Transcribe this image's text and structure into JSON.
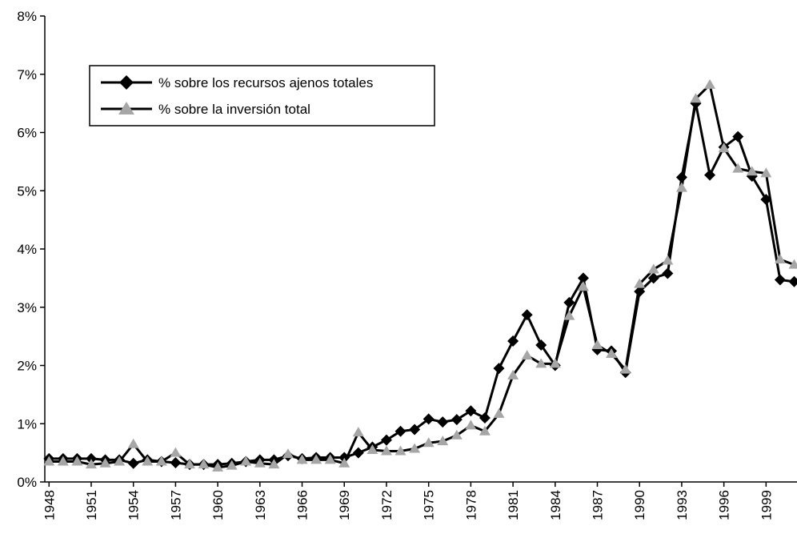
{
  "chart_data": {
    "type": "line",
    "x": [
      1948,
      1949,
      1950,
      1951,
      1952,
      1953,
      1954,
      1955,
      1956,
      1957,
      1958,
      1959,
      1960,
      1961,
      1962,
      1963,
      1964,
      1965,
      1966,
      1967,
      1968,
      1969,
      1970,
      1971,
      1972,
      1973,
      1974,
      1975,
      1976,
      1977,
      1978,
      1979,
      1980,
      1981,
      1982,
      1983,
      1984,
      1985,
      1986,
      1987,
      1988,
      1989,
      1990,
      1991,
      1992,
      1993,
      1994,
      1995,
      1996,
      1997,
      1998,
      1999,
      2000,
      2001
    ],
    "series": [
      {
        "name": "% sobre los recursos ajenos totales",
        "color": "#000000",
        "marker": "diamond",
        "values": [
          0.4,
          0.4,
          0.4,
          0.4,
          0.38,
          0.38,
          0.32,
          0.38,
          0.35,
          0.33,
          0.3,
          0.3,
          0.3,
          0.32,
          0.35,
          0.38,
          0.38,
          0.45,
          0.4,
          0.42,
          0.42,
          0.42,
          0.5,
          0.6,
          0.72,
          0.87,
          0.9,
          1.08,
          1.03,
          1.07,
          1.22,
          1.1,
          1.95,
          2.42,
          2.87,
          2.35,
          2.0,
          3.08,
          3.5,
          2.27,
          2.25,
          1.88,
          3.27,
          3.5,
          3.58,
          5.23,
          6.5,
          5.27,
          5.75,
          5.93,
          5.25,
          4.85,
          3.47,
          3.44
        ]
      },
      {
        "name": "% sobre la inversión total",
        "color": "#a6a6a6",
        "marker": "triangle",
        "values": [
          0.35,
          0.35,
          0.35,
          0.3,
          0.32,
          0.35,
          0.65,
          0.35,
          0.35,
          0.5,
          0.3,
          0.3,
          0.25,
          0.28,
          0.35,
          0.32,
          0.3,
          0.48,
          0.38,
          0.38,
          0.38,
          0.32,
          0.85,
          0.55,
          0.53,
          0.53,
          0.57,
          0.67,
          0.7,
          0.8,
          0.97,
          0.87,
          1.17,
          1.83,
          2.17,
          2.03,
          2.03,
          2.85,
          3.35,
          2.35,
          2.2,
          1.93,
          3.4,
          3.65,
          3.8,
          5.05,
          6.58,
          6.82,
          5.73,
          5.38,
          5.33,
          5.3,
          3.82,
          3.73
        ]
      }
    ],
    "xlim": [
      1947.7,
      2001.2
    ],
    "xticks": [
      1948,
      1951,
      1954,
      1957,
      1960,
      1963,
      1966,
      1969,
      1972,
      1975,
      1978,
      1981,
      1984,
      1987,
      1990,
      1993,
      1996,
      1999
    ],
    "ylim": [
      0,
      8
    ],
    "yticks": [
      {
        "value": 0,
        "label": "0%"
      },
      {
        "value": 1,
        "label": "1%"
      },
      {
        "value": 2,
        "label": "2%"
      },
      {
        "value": 3,
        "label": "3%"
      },
      {
        "value": 4,
        "label": "4%"
      },
      {
        "value": 5,
        "label": "5%"
      },
      {
        "value": 6,
        "label": "6%"
      },
      {
        "value": 7,
        "label": "7%"
      },
      {
        "value": 8,
        "label": "8%"
      }
    ],
    "legend": "upper left"
  }
}
